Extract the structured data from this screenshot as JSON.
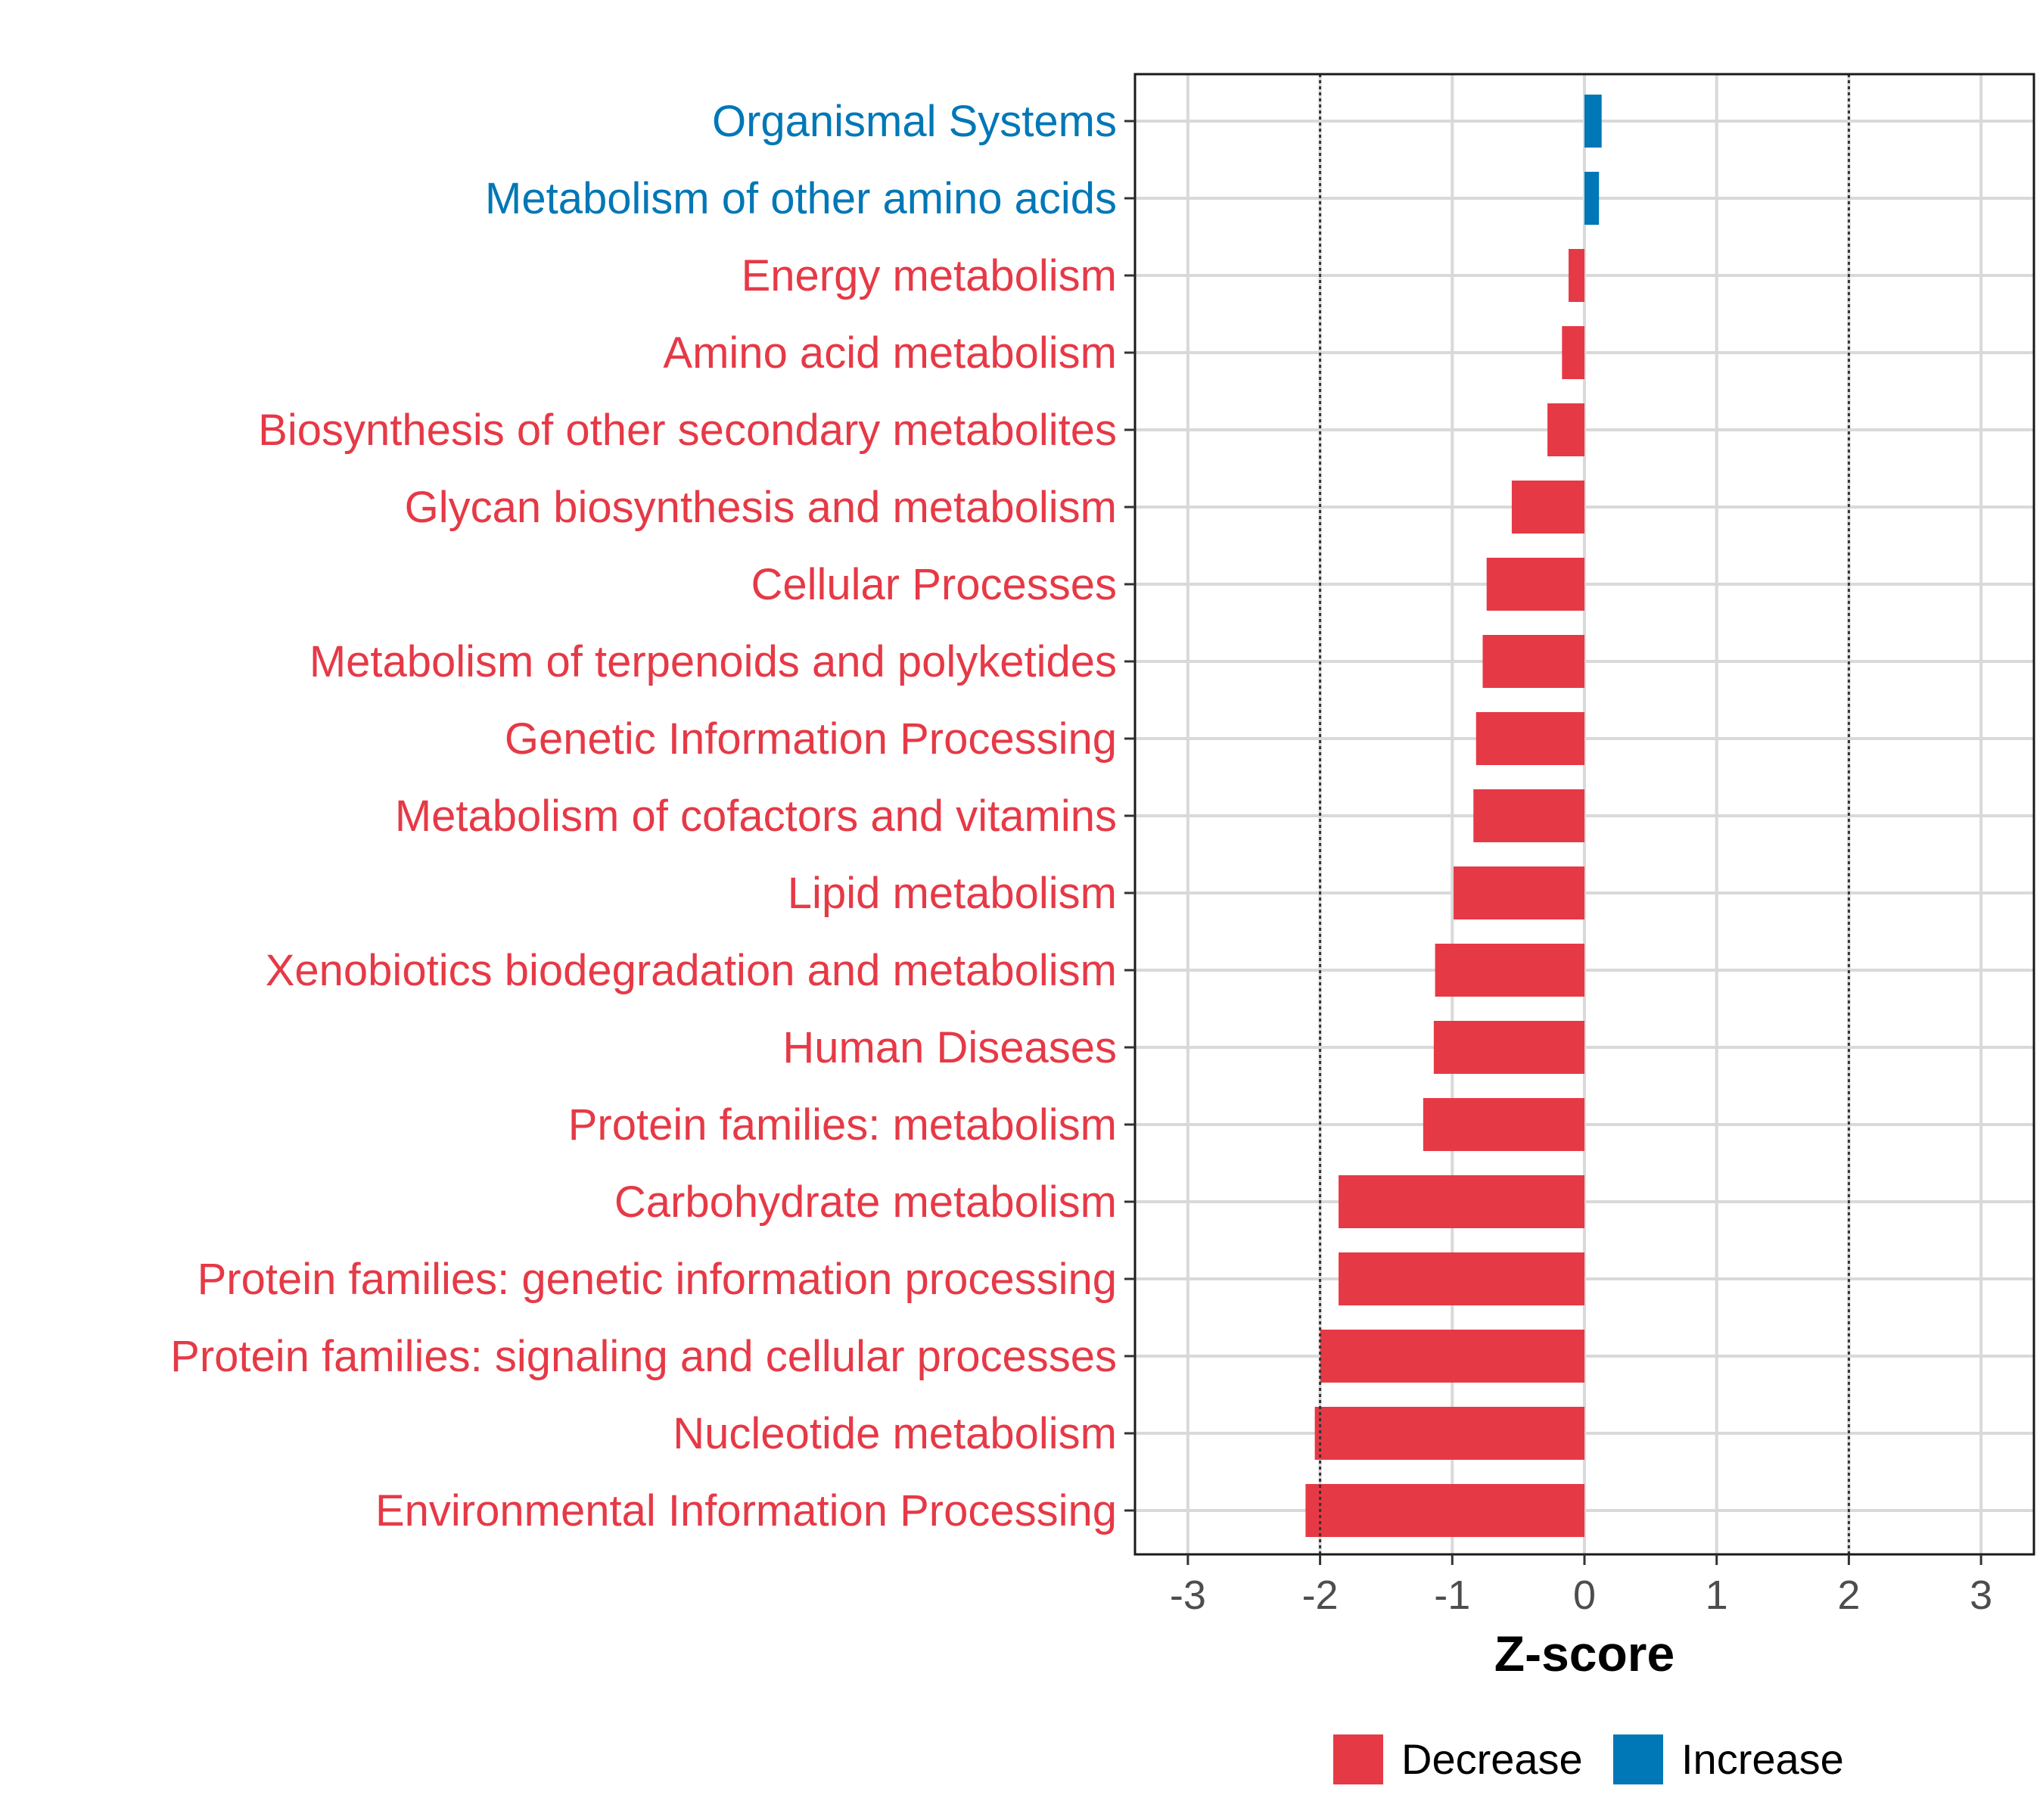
{
  "chart_data": {
    "type": "bar",
    "orientation": "horizontal",
    "xlabel": "Z-score",
    "xlim": [
      -3.4,
      3.4
    ],
    "xticks": [
      -3,
      -2,
      -1,
      0,
      1,
      2,
      3
    ],
    "xtick_labels": [
      "-3",
      "-2",
      "-1",
      "0",
      "1",
      "2",
      "3"
    ],
    "reference_lines": [
      -2,
      2
    ],
    "grid": true,
    "legend_position": "bottom",
    "legend": [
      {
        "label": "Decrease",
        "color": "#e63946"
      },
      {
        "label": "Increase",
        "color": "#0077b6"
      }
    ],
    "categories": [
      {
        "label": "Organismal Systems",
        "value": 0.13,
        "direction": "Increase"
      },
      {
        "label": "Metabolism of other amino acids",
        "value": 0.11,
        "direction": "Increase"
      },
      {
        "label": "Energy metabolism",
        "value": -0.12,
        "direction": "Decrease"
      },
      {
        "label": "Amino acid metabolism",
        "value": -0.17,
        "direction": "Decrease"
      },
      {
        "label": "Biosynthesis of other secondary metabolites",
        "value": -0.28,
        "direction": "Decrease"
      },
      {
        "label": "Glycan biosynthesis and metabolism",
        "value": -0.55,
        "direction": "Decrease"
      },
      {
        "label": "Cellular Processes",
        "value": -0.74,
        "direction": "Decrease"
      },
      {
        "label": "Metabolism of terpenoids and polyketides",
        "value": -0.77,
        "direction": "Decrease"
      },
      {
        "label": "Genetic Information Processing",
        "value": -0.82,
        "direction": "Decrease"
      },
      {
        "label": "Metabolism of cofactors and vitamins",
        "value": -0.84,
        "direction": "Decrease"
      },
      {
        "label": "Lipid metabolism",
        "value": -0.99,
        "direction": "Decrease"
      },
      {
        "label": "Xenobiotics biodegradation and metabolism",
        "value": -1.13,
        "direction": "Decrease"
      },
      {
        "label": "Human Diseases",
        "value": -1.14,
        "direction": "Decrease"
      },
      {
        "label": "Protein families: metabolism",
        "value": -1.22,
        "direction": "Decrease"
      },
      {
        "label": "Carbohydrate metabolism",
        "value": -1.86,
        "direction": "Decrease"
      },
      {
        "label": "Protein families: genetic information processing",
        "value": -1.86,
        "direction": "Decrease"
      },
      {
        "label": "Protein families: signaling and cellular processes",
        "value": -2.0,
        "direction": "Decrease"
      },
      {
        "label": "Nucleotide metabolism",
        "value": -2.04,
        "direction": "Decrease"
      },
      {
        "label": "Environmental Information Processing",
        "value": -2.11,
        "direction": "Decrease"
      }
    ]
  }
}
